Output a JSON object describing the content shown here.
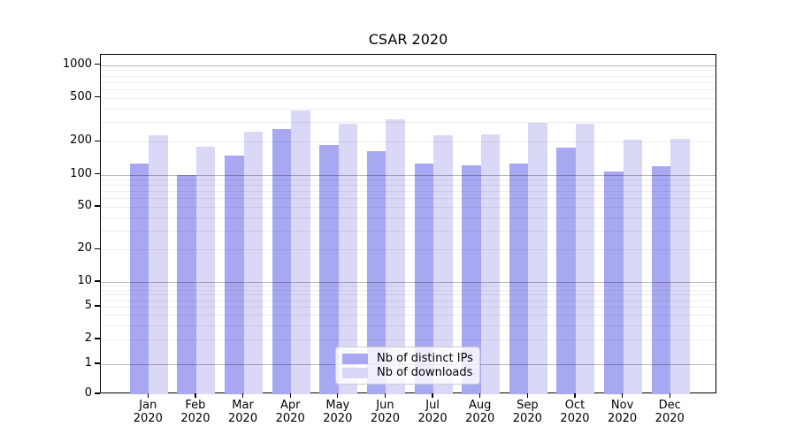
{
  "chart_data": {
    "type": "bar",
    "title": "CSAR 2020",
    "categories": [
      "Jan",
      "Feb",
      "Mar",
      "Apr",
      "May",
      "Jun",
      "Jul",
      "Aug",
      "Sep",
      "Oct",
      "Nov",
      "Dec"
    ],
    "category_year": "2020",
    "series": [
      {
        "name": "Nb of distinct IPs",
        "color": "#a8a8f2",
        "values": [
          125,
          100,
          150,
          260,
          185,
          165,
          127,
          121,
          127,
          177,
          107,
          120
        ]
      },
      {
        "name": "Nb of downloads",
        "color": "#d9d9f7",
        "values": [
          228,
          181,
          248,
          384,
          292,
          319,
          228,
          233,
          299,
          290,
          210,
          212
        ]
      }
    ],
    "xlabel": "",
    "ylabel": "",
    "yscale": "symlog",
    "y_ticks": [
      0,
      1,
      2,
      5,
      10,
      20,
      50,
      100,
      200,
      500,
      1000
    ],
    "ylim": [
      0,
      1260
    ],
    "grid": true,
    "legend_position": "lower-center"
  },
  "colors": {
    "background": "#ffffff",
    "spine": "#000000",
    "major_gridline": "#b9b9b9",
    "minor_gridline": "#ededed",
    "legend_border": "#cccccc"
  }
}
